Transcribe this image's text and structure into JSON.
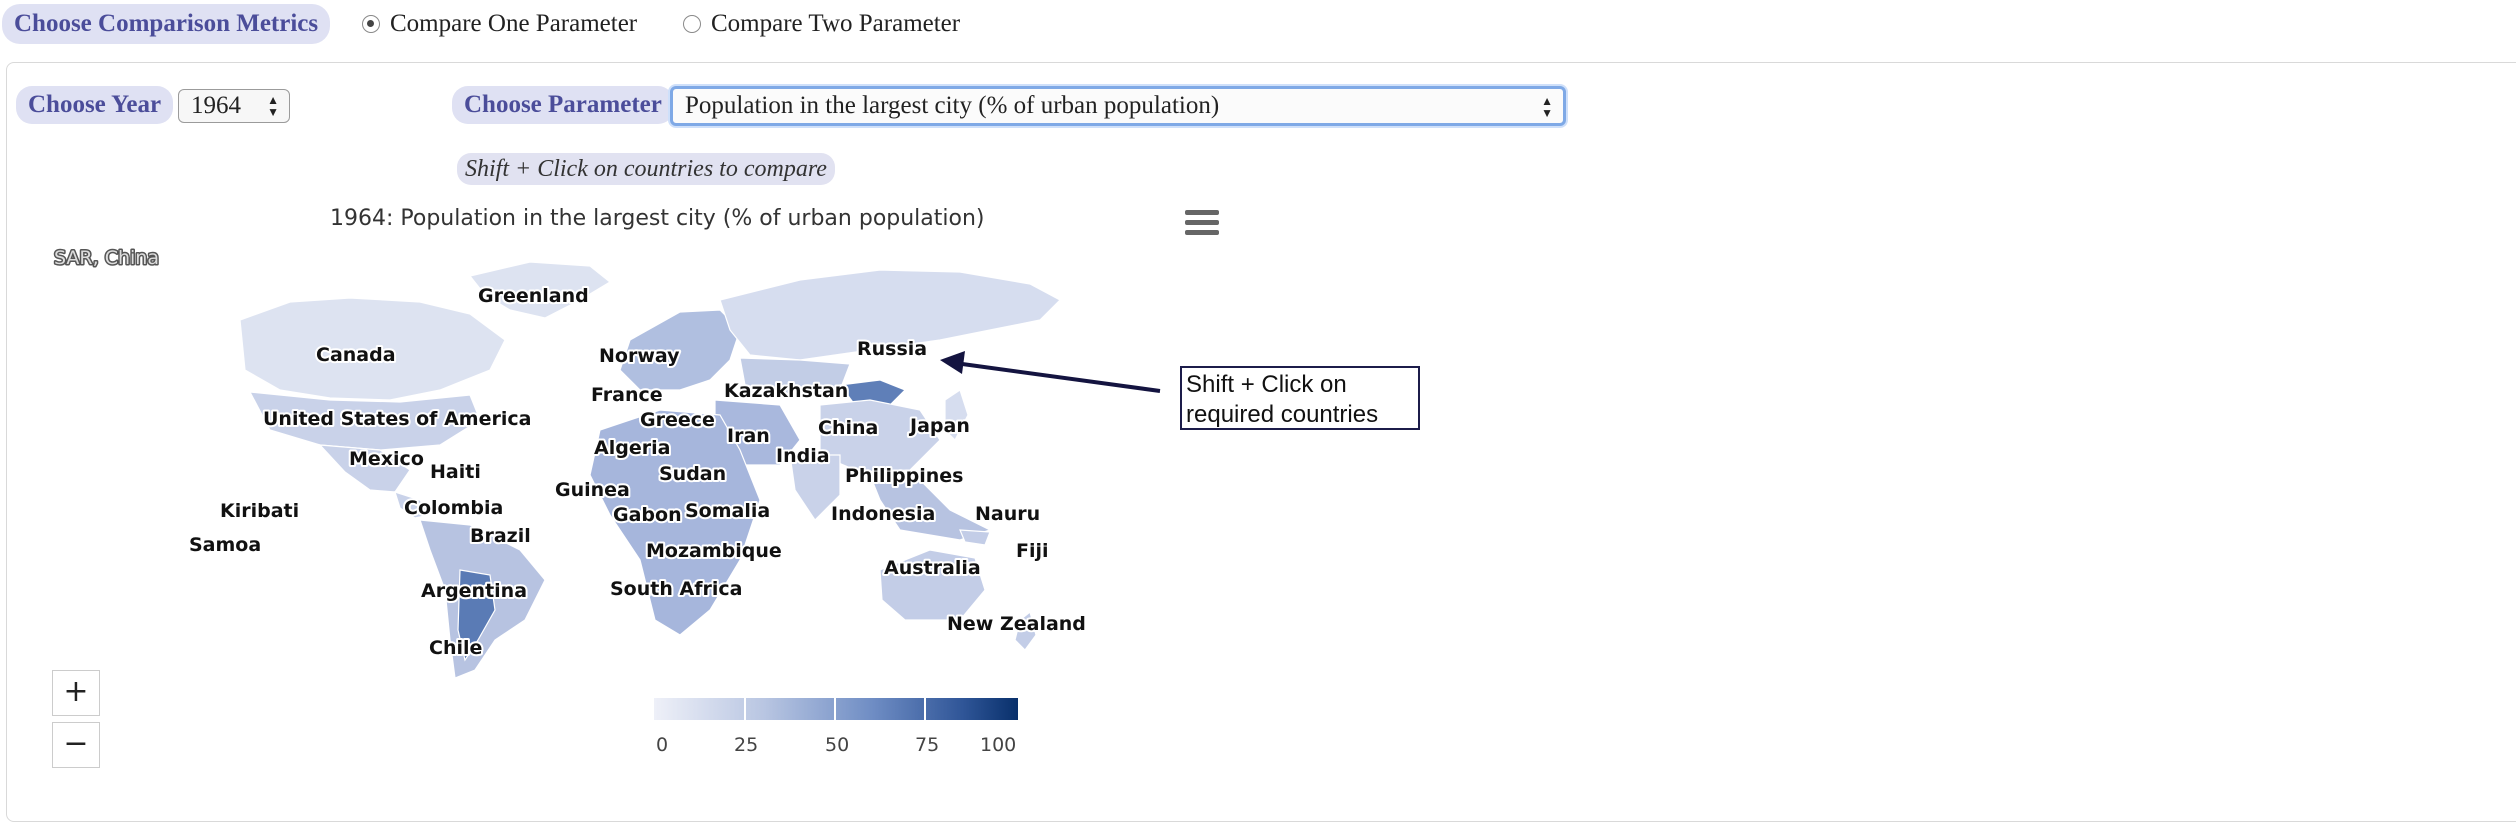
{
  "metrics": {
    "label": "Choose Comparison Metrics",
    "options": [
      {
        "label": "Compare One Parameter",
        "selected": true
      },
      {
        "label": "Compare Two Parameter",
        "selected": false
      }
    ]
  },
  "year": {
    "label": "Choose Year",
    "value": "1964"
  },
  "parameter": {
    "label": "Choose Parameter",
    "value": "Population in the largest city (% of urban population)"
  },
  "hint": "Shift + Click on countries to compare",
  "chart": {
    "title": "1964: Population in the largest city (% of urban population)",
    "tooltip_fragment": "SAR, China",
    "country_labels": [
      "Greenland",
      "Canada",
      "Norway",
      "Russia",
      "Kazakhstan",
      "France",
      "Greece",
      "China",
      "Japan",
      "United States of America",
      "Iran",
      "Algeria",
      "India",
      "Mexico",
      "Haiti",
      "Sudan",
      "Philippines",
      "Guinea",
      "Kiribati",
      "Colombia",
      "Somalia",
      "Gabon",
      "Indonesia",
      "Nauru",
      "Samoa",
      "Brazil",
      "Mozambique",
      "Fiji",
      "Australia",
      "Argentina",
      "South Africa",
      "New Zealand",
      "Chile"
    ]
  },
  "annotation": {
    "line1": "Shift + Click on",
    "line2": "required countries"
  },
  "zoom": {
    "in": "+",
    "out": "−"
  },
  "legend": {
    "ticks": [
      "0",
      "25",
      "50",
      "75",
      "100"
    ],
    "color_low": "#eef0f8",
    "color_high": "#08306b"
  }
}
